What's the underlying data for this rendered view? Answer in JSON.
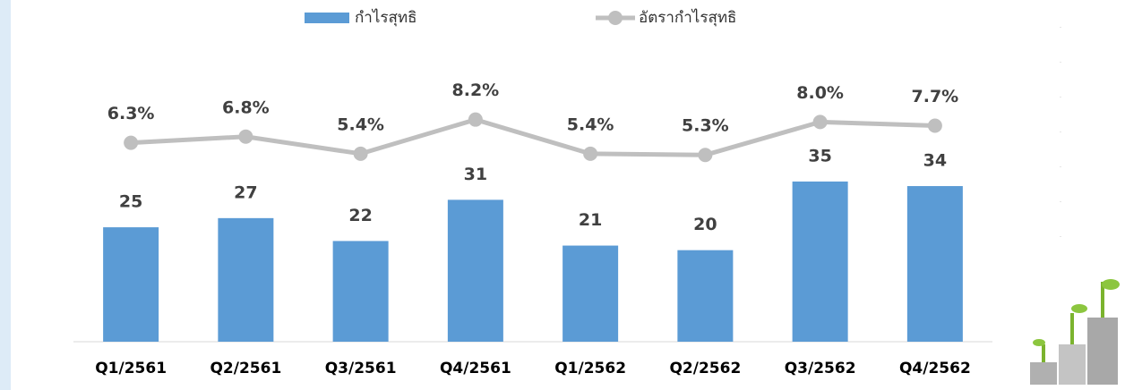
{
  "chart_data": {
    "type": "combo",
    "categories": [
      "Q1/2561",
      "Q2/2561",
      "Q3/2561",
      "Q4/2561",
      "Q1/2562",
      "Q2/2562",
      "Q3/2562",
      "Q4/2562"
    ],
    "series": [
      {
        "name": "กำไรสุทธิ",
        "type": "bar",
        "color": "#5b9bd5",
        "values": [
          25,
          27,
          22,
          31,
          21,
          20,
          35,
          34
        ]
      },
      {
        "name": "อัตรากำไรสุทธิ",
        "type": "line",
        "axis": "y2",
        "color": "#bfbfbf",
        "values": [
          6.3,
          6.8,
          5.4,
          8.2,
          5.4,
          5.3,
          8.0,
          7.7
        ],
        "value_labels": [
          "6.3%",
          "6.8%",
          "5.4%",
          "8.2%",
          "5.4%",
          "5.3%",
          "8.0%",
          "7.7%"
        ]
      }
    ],
    "ylim": [
      0,
      60
    ],
    "y2lim": [
      -10,
      12.5
    ],
    "grid": false,
    "legend": "top"
  }
}
